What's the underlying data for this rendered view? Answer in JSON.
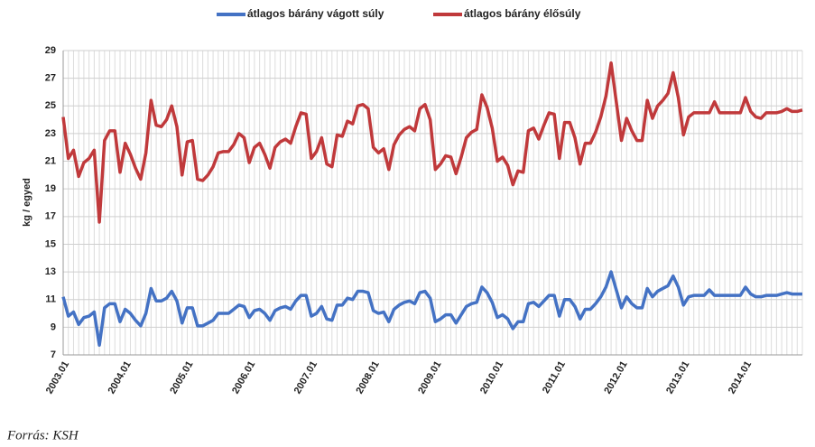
{
  "chart_data": {
    "type": "line",
    "y_label": "kg / egyed",
    "source": "Forrás: KSH",
    "legend": "top",
    "grid": true,
    "ylim": [
      7,
      29
    ],
    "yticks": [
      7,
      9,
      11,
      13,
      15,
      17,
      19,
      21,
      23,
      25,
      27,
      29
    ],
    "categories": [
      "2003.01",
      null,
      null,
      null,
      null,
      null,
      null,
      null,
      null,
      null,
      null,
      null,
      "2004.01",
      null,
      null,
      null,
      null,
      null,
      null,
      null,
      null,
      null,
      null,
      null,
      "2005.01",
      null,
      null,
      null,
      null,
      null,
      null,
      null,
      null,
      null,
      null,
      null,
      "2006.01",
      null,
      null,
      null,
      null,
      null,
      null,
      null,
      null,
      null,
      null,
      null,
      "2007.01",
      null,
      null,
      null,
      null,
      null,
      null,
      null,
      null,
      null,
      null,
      null,
      "2008.01",
      null,
      null,
      null,
      null,
      null,
      null,
      null,
      null,
      null,
      null,
      null,
      "2009.01",
      null,
      null,
      null,
      null,
      null,
      null,
      null,
      null,
      null,
      null,
      null,
      "2010.01",
      null,
      null,
      null,
      null,
      null,
      null,
      null,
      null,
      null,
      null,
      null,
      "2011.01",
      null,
      null,
      null,
      null,
      null,
      null,
      null,
      null,
      null,
      null,
      null,
      "2012.01",
      null,
      null,
      null,
      null,
      null,
      null,
      null,
      null,
      null,
      null,
      null,
      "2013.01",
      null,
      null,
      null,
      null,
      null,
      null,
      null,
      null,
      null,
      null,
      null,
      "2014.01",
      null,
      null,
      null,
      null,
      null,
      null,
      null,
      null,
      null,
      null,
      null
    ],
    "series": [
      {
        "name": "átlagos bárány vágott súly",
        "color": "#4472c4",
        "values": [
          11.2,
          9.8,
          10.1,
          9.2,
          9.7,
          9.8,
          10.1,
          7.7,
          10.4,
          10.7,
          10.7,
          9.4,
          10.3,
          10.0,
          9.5,
          9.1,
          10.0,
          11.8,
          10.9,
          10.9,
          11.1,
          11.6,
          10.9,
          9.3,
          10.4,
          10.4,
          9.1,
          9.1,
          9.3,
          9.5,
          10.0,
          10.0,
          10.0,
          10.3,
          10.6,
          10.5,
          9.7,
          10.2,
          10.3,
          10.0,
          9.5,
          10.2,
          10.4,
          10.5,
          10.3,
          10.9,
          11.3,
          11.3,
          9.8,
          10.0,
          10.5,
          9.6,
          9.5,
          10.6,
          10.6,
          11.1,
          11.0,
          11.6,
          11.6,
          11.5,
          10.2,
          10.0,
          10.1,
          9.4,
          10.3,
          10.6,
          10.8,
          10.9,
          10.7,
          11.5,
          11.6,
          11.1,
          9.4,
          9.6,
          9.9,
          9.9,
          9.3,
          9.9,
          10.5,
          10.7,
          10.8,
          11.9,
          11.5,
          10.8,
          9.7,
          9.9,
          9.6,
          8.9,
          9.4,
          9.4,
          10.7,
          10.8,
          10.5,
          10.9,
          11.3,
          11.3,
          9.8,
          11.0,
          11.0,
          10.5,
          9.6,
          10.3,
          10.3,
          10.7,
          11.2,
          11.9,
          13.0,
          11.7,
          10.4,
          11.2,
          10.7,
          10.4,
          10.4,
          11.8,
          11.2,
          11.6,
          11.8,
          12.0,
          12.7,
          11.9,
          10.6,
          11.2,
          11.3,
          11.3,
          11.3,
          11.7,
          11.3,
          11.3,
          11.3,
          11.3,
          11.3,
          11.3,
          11.9,
          11.4,
          11.2,
          11.2,
          11.3,
          11.3,
          11.3,
          11.4,
          11.5,
          11.4,
          11.4,
          11.4
        ]
      },
      {
        "name": "átlagos bárány élősúly",
        "color": "#c0393b",
        "values": [
          24.2,
          21.2,
          21.8,
          19.9,
          20.9,
          21.2,
          21.8,
          16.6,
          22.5,
          23.2,
          23.2,
          20.2,
          22.3,
          21.5,
          20.5,
          19.7,
          21.6,
          25.4,
          23.6,
          23.5,
          24.0,
          25.0,
          23.5,
          20.0,
          22.4,
          22.5,
          19.7,
          19.6,
          20.0,
          20.6,
          21.6,
          21.7,
          21.7,
          22.2,
          23.0,
          22.7,
          20.9,
          22.0,
          22.3,
          21.5,
          20.5,
          22.0,
          22.4,
          22.6,
          22.3,
          23.5,
          24.5,
          24.4,
          21.2,
          21.7,
          22.7,
          20.8,
          20.6,
          22.9,
          22.8,
          23.9,
          23.7,
          25.0,
          25.1,
          24.8,
          22.0,
          21.6,
          21.9,
          20.4,
          22.2,
          22.9,
          23.3,
          23.5,
          23.2,
          24.8,
          25.1,
          24.0,
          20.4,
          20.8,
          21.4,
          21.3,
          20.1,
          21.3,
          22.7,
          23.1,
          23.3,
          25.8,
          24.9,
          23.4,
          21.0,
          21.3,
          20.7,
          19.3,
          20.3,
          20.2,
          23.2,
          23.4,
          22.6,
          23.6,
          24.5,
          24.4,
          21.2,
          23.8,
          23.8,
          22.7,
          20.8,
          22.3,
          22.3,
          23.1,
          24.2,
          25.7,
          28.1,
          25.3,
          22.5,
          24.1,
          23.2,
          22.5,
          22.5,
          25.4,
          24.1,
          25.0,
          25.4,
          25.9,
          27.4,
          25.6,
          22.9,
          24.2,
          24.5,
          24.5,
          24.5,
          24.5,
          25.3,
          24.5,
          24.5,
          24.5,
          24.5,
          24.5,
          25.6,
          24.6,
          24.2,
          24.1,
          24.5,
          24.5,
          24.5,
          24.6,
          24.8,
          24.6,
          24.6,
          24.7
        ]
      }
    ]
  }
}
